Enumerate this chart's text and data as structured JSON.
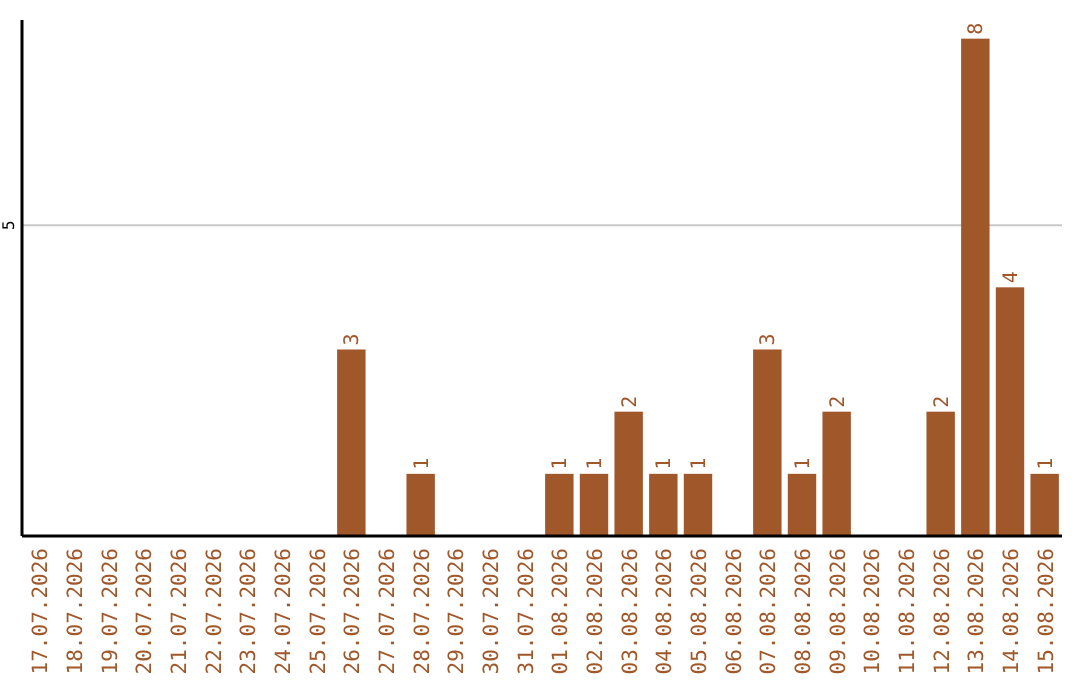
{
  "chart_data": {
    "type": "bar",
    "categories": [
      "17.07.2026",
      "18.07.2026",
      "19.07.2026",
      "20.07.2026",
      "21.07.2026",
      "22.07.2026",
      "23.07.2026",
      "24.07.2026",
      "25.07.2026",
      "26.07.2026",
      "27.07.2026",
      "28.07.2026",
      "29.07.2026",
      "30.07.2026",
      "31.07.2026",
      "01.08.2026",
      "02.08.2026",
      "03.08.2026",
      "04.08.2026",
      "05.08.2026",
      "06.08.2026",
      "07.08.2026",
      "08.08.2026",
      "09.08.2026",
      "10.08.2026",
      "11.08.2026",
      "12.08.2026",
      "13.08.2026",
      "14.08.2026",
      "15.08.2026"
    ],
    "values": [
      0,
      0,
      0,
      0,
      0,
      0,
      0,
      0,
      0,
      3,
      0,
      1,
      0,
      0,
      0,
      1,
      1,
      2,
      1,
      1,
      0,
      3,
      1,
      2,
      0,
      0,
      2,
      8,
      4,
      1
    ],
    "value_labels": [
      null,
      null,
      null,
      null,
      null,
      null,
      null,
      null,
      null,
      "3",
      null,
      "1",
      null,
      null,
      null,
      "1",
      "1",
      "2",
      "1",
      "1",
      null,
      "3",
      "1",
      "2",
      null,
      null,
      "2",
      "8",
      "4",
      "1"
    ],
    "color": "#a0582a",
    "ylim": [
      0,
      8.3
    ],
    "yticks": [
      5
    ],
    "grid": "y"
  }
}
